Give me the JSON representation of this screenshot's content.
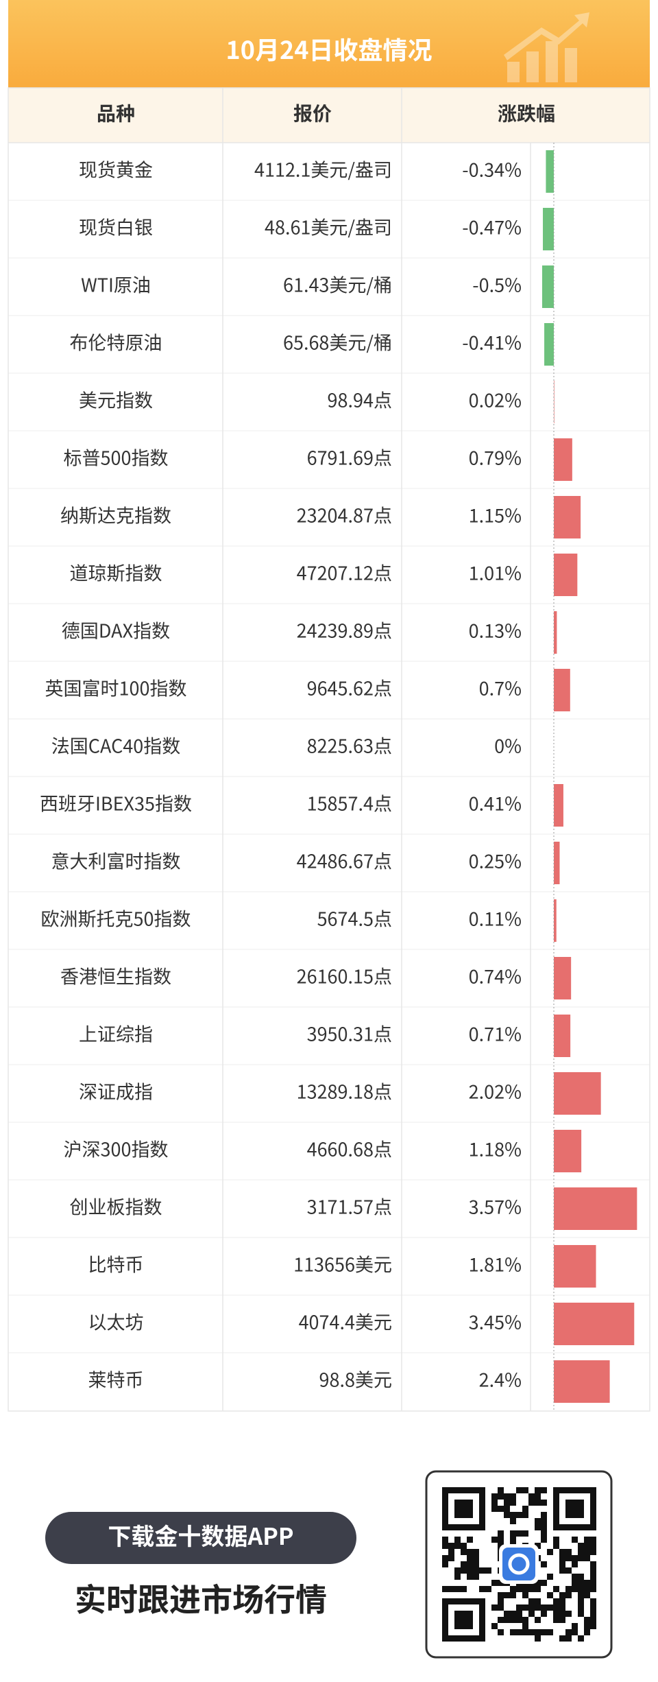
{
  "header": {
    "title": "10月24日收盘情况"
  },
  "table": {
    "columns": [
      "品种",
      "报价",
      "涨跌幅"
    ],
    "rows": [
      [
        "现货黄金",
        "4112.1美元/盎司",
        "-0.34%"
      ],
      [
        "现货白银",
        "48.61美元/盎司",
        "-0.47%"
      ],
      [
        "WTI原油",
        "61.43美元/桶",
        "-0.5%"
      ],
      [
        "布伦特原油",
        "65.68美元/桶",
        "-0.41%"
      ],
      [
        "美元指数",
        "98.94点",
        "0.02%"
      ],
      [
        "标普500指数",
        "6791.69点",
        "0.79%"
      ],
      [
        "纳斯达克指数",
        "23204.87点",
        "1.15%"
      ],
      [
        "道琼斯指数",
        "47207.12点",
        "1.01%"
      ],
      [
        "德国DAX指数",
        "24239.89点",
        "0.13%"
      ],
      [
        "英国富时100指数",
        "9645.62点",
        "0.7%"
      ],
      [
        "法国CAC40指数",
        "8225.63点",
        "0%"
      ],
      [
        "西班牙IBEX35指数",
        "15857.4点",
        "0.41%"
      ],
      [
        "意大利富时指数",
        "42486.67点",
        "0.25%"
      ],
      [
        "欧洲斯托克50指数",
        "5674.5点",
        "0.11%"
      ],
      [
        "香港恒生指数",
        "26160.15点",
        "0.74%"
      ],
      [
        "上证综指",
        "3950.31点",
        "0.71%"
      ],
      [
        "深证成指",
        "13289.18点",
        "2.02%"
      ],
      [
        "沪深300指数",
        "4660.68点",
        "1.18%"
      ],
      [
        "创业板指数",
        "3171.57点",
        "3.57%"
      ],
      [
        "比特币",
        "113656美元",
        "1.81%"
      ],
      [
        "以太坊",
        "4074.4美元",
        "3.45%"
      ],
      [
        "莱特币",
        "98.8美元",
        "2.4%"
      ]
    ]
  },
  "footer": {
    "button": "下载金十数据APP",
    "slogan": "实时跟进市场行情"
  }
}
